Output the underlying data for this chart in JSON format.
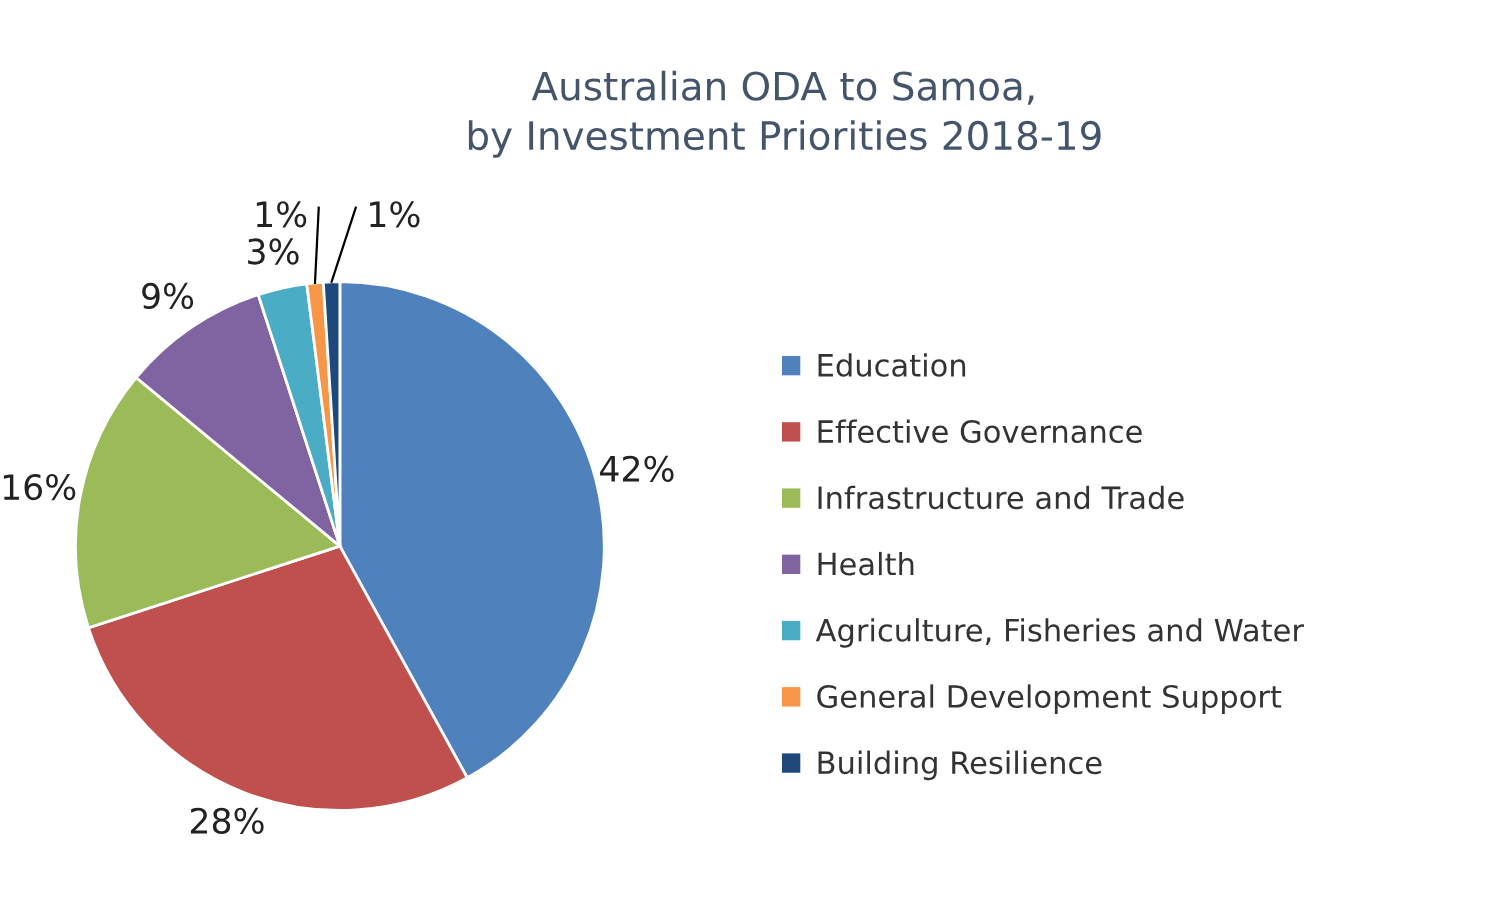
{
  "chart_data": {
    "type": "pie",
    "title": "Australian ODA to Samoa,\nby Investment Priorities 2018-19",
    "categories": [
      "Education",
      "Effective Governance",
      "Infrastructure and Trade",
      "Health",
      "Agriculture, Fisheries and Water",
      "General Development Support",
      "Building Resilience"
    ],
    "values": [
      42,
      28,
      16,
      9,
      3,
      1,
      1
    ],
    "value_labels": [
      "42%",
      "28%",
      "16%",
      "9%",
      "3%",
      "1%",
      "1%"
    ],
    "colors": [
      "#4f81bd",
      "#c0504d",
      "#9bbb59",
      "#8064a2",
      "#4bacc6",
      "#f79646",
      "#1f497d"
    ],
    "legend": "right"
  }
}
